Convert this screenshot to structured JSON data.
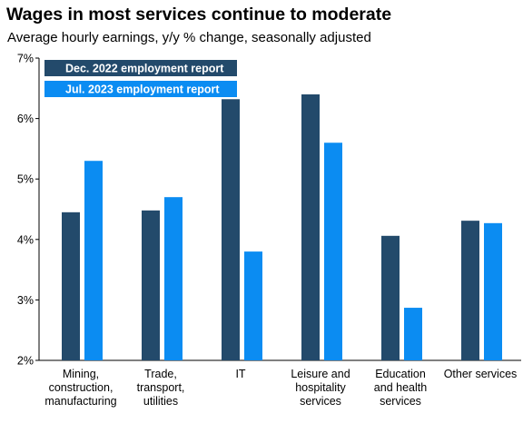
{
  "title": "Wages in most services continue to moderate",
  "subtitle": "Average hourly earnings, y/y % change, seasonally adjusted",
  "chart_data": {
    "type": "bar",
    "title": "Wages in most services continue to moderate",
    "subtitle": "Average hourly earnings, y/y % change, seasonally adjusted",
    "categories": [
      [
        "Mining,",
        "construction,",
        "manufacturing"
      ],
      [
        "Trade,",
        "transport,",
        "utilities"
      ],
      [
        "IT"
      ],
      [
        "Leisure and",
        "hospitality",
        "services"
      ],
      [
        "Education",
        "and health",
        "services"
      ],
      [
        "Other services"
      ]
    ],
    "series": [
      {
        "name": "Dec. 2022 employment report",
        "color": "#234a6b",
        "values": [
          4.45,
          4.48,
          6.32,
          6.4,
          4.06,
          4.31
        ]
      },
      {
        "name": "Jul. 2023 employment report",
        "color": "#0b8cf2",
        "values": [
          5.3,
          4.7,
          3.8,
          5.6,
          2.87,
          4.27
        ]
      }
    ],
    "ylim": [
      2,
      7
    ],
    "yticks": [
      2,
      3,
      4,
      5,
      6,
      7
    ],
    "ytick_labels": [
      "2%",
      "3%",
      "4%",
      "5%",
      "6%",
      "7%"
    ],
    "xlabel": "",
    "ylabel": "",
    "grid": false,
    "legend_position": "top-left"
  }
}
